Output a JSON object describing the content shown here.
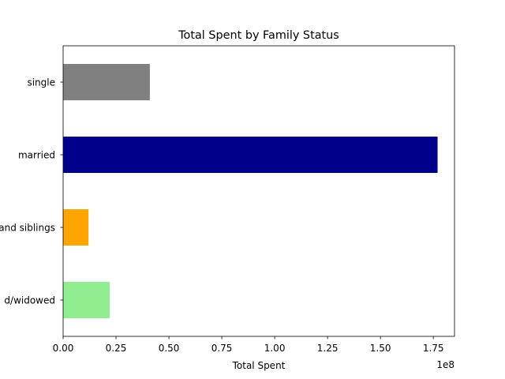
{
  "chart_data": {
    "type": "bar",
    "orientation": "horizontal",
    "title": "Total Spent by Family Status",
    "xlabel": "Total Spent",
    "ylabel": "",
    "x_offset_text": "1e8",
    "xlim": [
      0,
      185000000
    ],
    "x_ticks": [
      0,
      25000000,
      50000000,
      75000000,
      100000000,
      125000000,
      150000000,
      175000000
    ],
    "x_tick_labels": [
      "0.00",
      "0.25",
      "0.50",
      "0.75",
      "1.00",
      "1.25",
      "1.50",
      "1.75"
    ],
    "categories": [
      "single",
      "married",
      "and siblings",
      "d/widowed"
    ],
    "values": [
      41000000,
      177000000,
      12000000,
      22000000
    ],
    "colors": [
      "#808080",
      "#00008b",
      "#ffa500",
      "#90ee90"
    ],
    "grid": false,
    "legend": "none"
  }
}
